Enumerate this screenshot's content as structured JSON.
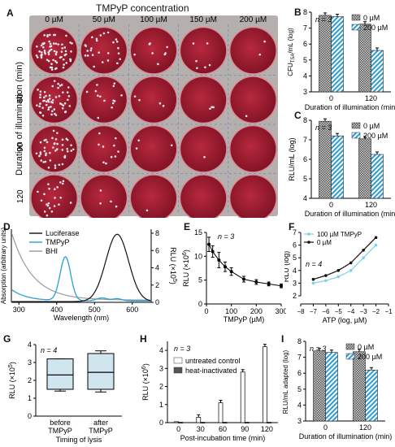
{
  "panel_labels": [
    "A",
    "B",
    "C",
    "D",
    "E",
    "F",
    "G",
    "H",
    "I"
  ],
  "panelA": {
    "title": "TMPyP concentration",
    "col_labels": [
      "0 µM",
      "50 µM",
      "100 µM",
      "150 µM",
      "200 µM"
    ],
    "row_labels": [
      "0",
      "60",
      "90",
      "120"
    ],
    "ylabel": "Duration of illumination (min)",
    "colony_density": [
      [
        70,
        26,
        8,
        6,
        2
      ],
      [
        55,
        14,
        4,
        3,
        1
      ],
      [
        45,
        10,
        3,
        1,
        0
      ],
      [
        22,
        4,
        1,
        0,
        0
      ]
    ]
  },
  "chart_data": [
    {
      "id": "B",
      "type": "bar",
      "categories": [
        "0",
        "120"
      ],
      "series": [
        {
          "name": "0 µM",
          "values": [
            7.8,
            7.25
          ]
        },
        {
          "name": "200 µM",
          "values": [
            7.72,
            5.6
          ]
        }
      ],
      "note": "n = 3",
      "xlabel": "Duration of illumination (min)",
      "ylabel": "CFU",
      "ylabel_sub": "TSA",
      "ylabel_rest": "/mL (log)",
      "ylim": [
        3,
        8
      ],
      "yticks": [
        "3",
        "4",
        "5",
        "6",
        "7",
        "8"
      ]
    },
    {
      "id": "C",
      "type": "bar",
      "categories": [
        "0",
        "120"
      ],
      "series": [
        {
          "name": "0 µM",
          "values": [
            7.95,
            7.05
          ]
        },
        {
          "name": "200 µM",
          "values": [
            7.2,
            6.25
          ]
        }
      ],
      "note": "n = 3",
      "xlabel": "Duration of illumination (min)",
      "ylabel": "RLU/mL (log)",
      "ylim": [
        4,
        8
      ],
      "yticks": [
        "4",
        "5",
        "6",
        "7",
        "8"
      ]
    },
    {
      "id": "D",
      "type": "line",
      "series": [
        {
          "name": "Luciferase"
        },
        {
          "name": "TMPyP"
        },
        {
          "name": "BHI"
        }
      ],
      "xlabel": "Wavelength (nm)",
      "xticks": [
        "300",
        "400",
        "500",
        "600"
      ],
      "ylabel_left": "Absorption (arbitrary units)",
      "ylabel_right": "RLU (×10",
      "ylabel_right_exp": "5",
      "ylabel_right_end": ")",
      "yticks_right": [
        "0",
        "2",
        "4",
        "6",
        "8"
      ]
    },
    {
      "id": "E",
      "type": "line",
      "note": "n = 3",
      "x": [
        10,
        25,
        50,
        75,
        100,
        150,
        200,
        250,
        300
      ],
      "y": [
        12.5,
        11,
        9.2,
        7.8,
        6.8,
        5.2,
        4.6,
        4.2,
        3.8
      ],
      "err": [
        1.5,
        1.2,
        1.6,
        1.0,
        0.8,
        0.6,
        0.5,
        0.4,
        0.4
      ],
      "xlabel": "TMPyP (µM)",
      "xticks": [
        "0",
        "100",
        "200",
        "300"
      ],
      "ylabel": "RLU (×10",
      "ylabel_exp": "6",
      "ylabel_end": ")",
      "yticks": [
        "0",
        "5",
        "10",
        "15"
      ],
      "xlim": [
        0,
        300
      ],
      "ylim": [
        0,
        15
      ]
    },
    {
      "id": "F",
      "type": "line",
      "note": "n = 4",
      "series": [
        {
          "name": "100 µM TMPyP",
          "x": [
            -7,
            -6,
            -5,
            -4,
            -3,
            -2
          ],
          "y": [
            3.0,
            3.2,
            3.5,
            4.0,
            5.0,
            6.0
          ]
        },
        {
          "name": "0 µM",
          "x": [
            -7,
            -6,
            -5,
            -4,
            -3,
            -2
          ],
          "y": [
            3.3,
            3.6,
            4.0,
            4.6,
            5.6,
            6.6
          ]
        }
      ],
      "xlabel": "ATP (log, µM)",
      "xticks": [
        "−8",
        "−7",
        "−6",
        "−5",
        "−4",
        "−3",
        "−2",
        "−1"
      ],
      "ylabel": "RLU (log)",
      "yticks": [
        "2",
        "3",
        "4",
        "5",
        "6",
        "7"
      ],
      "xlim": [
        -8,
        -1
      ],
      "ylim": [
        2,
        7
      ]
    },
    {
      "id": "G",
      "type": "box",
      "note": "n = 4",
      "categories": [
        "before TMPyP",
        "after TMPyP"
      ],
      "boxes": [
        {
          "min": 1.4,
          "q1": 1.5,
          "median": 2.3,
          "q3": 3.2,
          "max": 3.2
        },
        {
          "min": 1.35,
          "q1": 1.5,
          "median": 2.45,
          "q3": 3.5,
          "max": 3.65
        }
      ],
      "xlabel": "Timing of lysis",
      "ylabel": "RLU (×10",
      "ylabel_exp": "5",
      "ylabel_end": ")",
      "yticks": [
        "0",
        "1",
        "2",
        "3",
        "4"
      ],
      "ylim": [
        0,
        4
      ]
    },
    {
      "id": "H",
      "type": "bar",
      "note": "n = 3",
      "categories": [
        "0",
        "30",
        "60",
        "90",
        "120"
      ],
      "series": [
        {
          "name": "untreated control",
          "values": [
            0.05,
            0.3,
            1.1,
            2.8,
            4.2
          ]
        },
        {
          "name": "heat-inactivated",
          "values": [
            0.02,
            0.02,
            0.02,
            0.02,
            0.02
          ]
        }
      ],
      "xlabel": "Post-incubation time (min)",
      "ylabel": "RLU (×10",
      "ylabel_exp": "6",
      "ylabel_end": ")",
      "yticks": [
        "0",
        "1",
        "2",
        "3",
        "4"
      ],
      "ylim": [
        0,
        4.5
      ]
    },
    {
      "id": "I",
      "type": "bar",
      "note": "n = 3",
      "categories": [
        "0",
        "120"
      ],
      "series": [
        {
          "name": "0 µM",
          "values": [
            7.4,
            7.35
          ]
        },
        {
          "name": "200 µM",
          "values": [
            7.3,
            6.2
          ]
        }
      ],
      "xlabel": "Duration of illumination (min)",
      "ylabel": "RLU/mL adapted (log)",
      "yticks": [
        "3",
        "4",
        "5",
        "6",
        "7",
        "8"
      ],
      "ylim": [
        3,
        8
      ]
    }
  ],
  "colors": {
    "dish_red": "#9c1a2e",
    "dish_rim": "#d98b96",
    "tray": "#b5b0ad",
    "hatch": "#2d9bd6",
    "gray_bar": "#7a7a7a",
    "luciferase": "#111111",
    "tmpyp": "#2a9fd8",
    "bhi": "#9a9a9a",
    "f_light": "#7fd1e6",
    "box_fill": "#cfe6ef"
  }
}
